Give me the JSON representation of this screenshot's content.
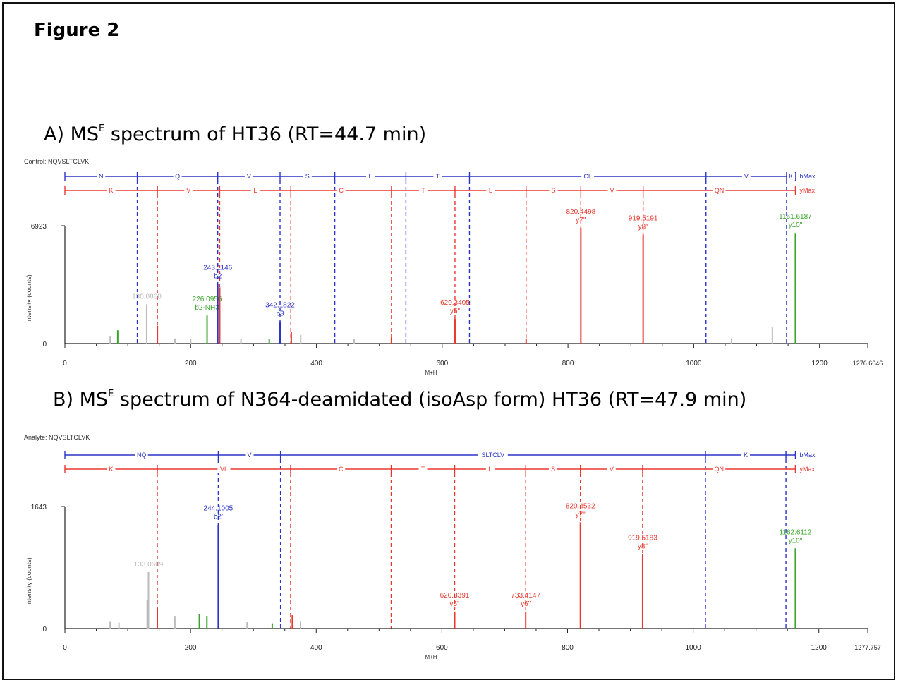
{
  "figure_title": "Figure 2",
  "colors": {
    "b_ion": "#2b33c8",
    "y_ion": "#e8382e",
    "neutral_loss": "#3aa52a",
    "unassigned": "#bbbbbb",
    "axis": "#222222"
  },
  "chart_data": [
    {
      "type": "bar",
      "title_prefix": "A) MS",
      "title_sup": "E",
      "title_rest": " spectrum of HT36 (RT=44.7 min)",
      "sample_label": "Control: NQVSLTCLVK",
      "xlabel": "M+H",
      "ylabel": "Intensity (counts)",
      "xlim": [
        0,
        1276.6646
      ],
      "ylim": [
        0,
        6923
      ],
      "x_ticks": [
        "0",
        "200",
        "400",
        "600",
        "800",
        "1000",
        "1200"
      ],
      "x_max_label": "1276.6646",
      "y_ticks": [
        "0",
        "6923"
      ],
      "b_ladder": {
        "label": "bMax",
        "boundaries": [
          0,
          115.05,
          243.11,
          342.18,
          429.21,
          542.3,
          643.35,
          1019.49,
          1147.58,
          1161.62
        ],
        "residues": [
          "N",
          "Q",
          "V",
          "S",
          "L",
          "T",
          "CL",
          "V",
          "K"
        ]
      },
      "y_ladder": {
        "label": "yMax",
        "boundaries": [
          0,
          147.11,
          246.18,
          359.27,
          519.29,
          620.34,
          733.42,
          820.46,
          919.52,
          1161.62
        ],
        "residues": [
          "K",
          "V",
          "L",
          "C",
          "T",
          "L",
          "S",
          "V",
          "QN"
        ]
      },
      "peaks": [
        {
          "mz": 72,
          "intensity": 450,
          "ion": "unassigned"
        },
        {
          "mz": 84,
          "intensity": 780,
          "ion": "neutral_loss"
        },
        {
          "mz": 130.09,
          "intensity": 2300,
          "ion": "unassigned",
          "label": "130.0860",
          "sublabel": ""
        },
        {
          "mz": 147.11,
          "intensity": 1050,
          "ion": "y"
        },
        {
          "mz": 175,
          "intensity": 300,
          "ion": "unassigned"
        },
        {
          "mz": 200,
          "intensity": 250,
          "ion": "unassigned"
        },
        {
          "mz": 226.09,
          "intensity": 1650,
          "ion": "neutral_loss",
          "label": "226.0956",
          "sublabel": "b2-NH3"
        },
        {
          "mz": 243.11,
          "intensity": 3500,
          "ion": "b",
          "label": "243.1146",
          "sublabel": "b2"
        },
        {
          "mz": 246.18,
          "intensity": 3300,
          "ion": "y"
        },
        {
          "mz": 280,
          "intensity": 300,
          "ion": "unassigned"
        },
        {
          "mz": 325,
          "intensity": 250,
          "ion": "neutral_loss"
        },
        {
          "mz": 342.18,
          "intensity": 1300,
          "ion": "b",
          "label": "342.1822",
          "sublabel": "b3"
        },
        {
          "mz": 360,
          "intensity": 700,
          "ion": "y"
        },
        {
          "mz": 375,
          "intensity": 500,
          "ion": "unassigned"
        },
        {
          "mz": 460,
          "intensity": 250,
          "ion": "unassigned"
        },
        {
          "mz": 519.29,
          "intensity": 350,
          "ion": "y"
        },
        {
          "mz": 620.34,
          "intensity": 1450,
          "ion": "y",
          "label": "620.3405",
          "sublabel": "y5\""
        },
        {
          "mz": 733.42,
          "intensity": 300,
          "ion": "y"
        },
        {
          "mz": 820.46,
          "intensity": 6800,
          "ion": "y",
          "label": "820.4498",
          "sublabel": "y7\""
        },
        {
          "mz": 919.52,
          "intensity": 6400,
          "ion": "y",
          "label": "919.5191",
          "sublabel": "y8\""
        },
        {
          "mz": 1060,
          "intensity": 300,
          "ion": "unassigned"
        },
        {
          "mz": 1125,
          "intensity": 950,
          "ion": "unassigned"
        },
        {
          "mz": 1161.62,
          "intensity": 6500,
          "ion": "neutral_loss",
          "label": "1161.6187",
          "sublabel": "y10\""
        }
      ]
    },
    {
      "type": "bar",
      "title_prefix": "B) MS",
      "title_sup": "E",
      "title_rest": " spectrum of N364-deamidated (isoAsp form) HT36 (RT=47.9 min)",
      "sample_label": "Analyte: NQVSLTCLVK",
      "xlabel": "M+H",
      "ylabel": "Intensity (counts)",
      "xlim": [
        0,
        1277.757
      ],
      "ylim": [
        0,
        1643
      ],
      "x_ticks": [
        "0",
        "200",
        "400",
        "600",
        "800",
        "1000",
        "1200"
      ],
      "x_max_label": "1277.757",
      "y_ticks": [
        "0",
        "1643"
      ],
      "b_ladder": {
        "label": "bMax",
        "boundaries": [
          0,
          244.1,
          343.17,
          1019.49,
          1147.58,
          1162.6
        ],
        "residues": [
          "NQ",
          "V",
          "SLTCLV",
          "K"
        ]
      },
      "y_ladder": {
        "label": "yMax",
        "boundaries": [
          0,
          147.11,
          359.27,
          519.29,
          620.34,
          733.42,
          820.46,
          919.52,
          1162.6
        ],
        "residues": [
          "K",
          "VL",
          "C",
          "T",
          "L",
          "S",
          "V",
          "QN"
        ]
      },
      "peaks": [
        {
          "mz": 72,
          "intensity": 100,
          "ion": "unassigned"
        },
        {
          "mz": 86,
          "intensity": 80,
          "ion": "unassigned"
        },
        {
          "mz": 131,
          "intensity": 380,
          "ion": "unassigned"
        },
        {
          "mz": 133.06,
          "intensity": 760,
          "ion": "unassigned",
          "label": "133.0609",
          "sublabel": ""
        },
        {
          "mz": 147.11,
          "intensity": 280,
          "ion": "y"
        },
        {
          "mz": 175,
          "intensity": 170,
          "ion": "unassigned"
        },
        {
          "mz": 214,
          "intensity": 190,
          "ion": "neutral_loss"
        },
        {
          "mz": 226,
          "intensity": 170,
          "ion": "neutral_loss"
        },
        {
          "mz": 244.1,
          "intensity": 1400,
          "ion": "b",
          "label": "244.1005",
          "sublabel": "b2'"
        },
        {
          "mz": 290,
          "intensity": 90,
          "ion": "unassigned"
        },
        {
          "mz": 330,
          "intensity": 70,
          "ion": "neutral_loss"
        },
        {
          "mz": 362,
          "intensity": 180,
          "ion": "y"
        },
        {
          "mz": 375,
          "intensity": 100,
          "ion": "unassigned"
        },
        {
          "mz": 620.34,
          "intensity": 230,
          "ion": "y",
          "label": "620.3391",
          "sublabel": "y5\""
        },
        {
          "mz": 733.41,
          "intensity": 230,
          "ion": "y",
          "label": "733.4147",
          "sublabel": "y6\""
        },
        {
          "mz": 820.45,
          "intensity": 1430,
          "ion": "y",
          "label": "820.4532",
          "sublabel": "y7\""
        },
        {
          "mz": 919.52,
          "intensity": 1000,
          "ion": "y",
          "label": "919.5183",
          "sublabel": "y8\""
        },
        {
          "mz": 1162.61,
          "intensity": 1080,
          "ion": "neutral_loss",
          "label": "1162.6112",
          "sublabel": "y10\""
        }
      ]
    }
  ]
}
